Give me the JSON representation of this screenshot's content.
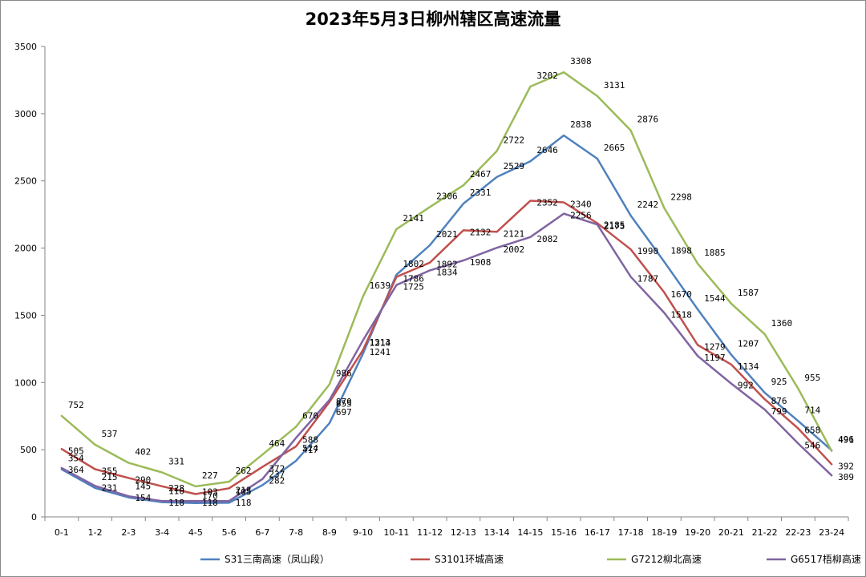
{
  "chart_data": {
    "type": "line",
    "title": "2023年5月3日柳州辖区高速流量",
    "xlabel": "",
    "ylabel": "",
    "ylim": [
      0,
      3500
    ],
    "yticks": [
      0,
      500,
      1000,
      1500,
      2000,
      2500,
      3000,
      3500
    ],
    "grid": false,
    "legend_position": "bottom",
    "categories": [
      "0-1",
      "1-2",
      "2-3",
      "3-4",
      "4-5",
      "5-6",
      "6-7",
      "7-8",
      "8-9",
      "9-10",
      "10-11",
      "11-12",
      "12-13",
      "13-14",
      "14-15",
      "15-16",
      "16-17",
      "17-18",
      "18-19",
      "19-20",
      "20-21",
      "21-22",
      "22-23",
      "23-24"
    ],
    "series": [
      {
        "name": "S31三南高速（凤山段）",
        "color": "#4f81bd",
        "values": [
          354,
          215,
          145,
          110,
          103,
          105,
          237,
          417,
          697,
          1214,
          1802,
          2021,
          2331,
          2529,
          2646,
          2838,
          2665,
          2242,
          1898,
          1544,
          1207,
          925,
          714,
          496
        ]
      },
      {
        "name": "S3101环城高速",
        "color": "#c0504d",
        "values": [
          505,
          355,
          290,
          228,
          170,
          213,
          372,
          524,
          855,
          1241,
          1786,
          1892,
          2132,
          2121,
          2352,
          2340,
          2185,
          1990,
          1670,
          1279,
          1134,
          876,
          658,
          392
        ]
      },
      {
        "name": "G7212柳北高速",
        "color": "#9bbb59",
        "values": [
          752,
          537,
          402,
          331,
          227,
          262,
          464,
          670,
          986,
          1639,
          2141,
          2306,
          2467,
          2722,
          3202,
          3308,
          3131,
          2876,
          2298,
          1885,
          1587,
          1360,
          955,
          491
        ]
      },
      {
        "name": "G6517梧柳高速",
        "color": "#8064a2",
        "values": [
          364,
          231,
          154,
          118,
          118,
          118,
          282,
          588,
          870,
          1313,
          1725,
          1834,
          1908,
          2002,
          2082,
          2256,
          2175,
          1787,
          1518,
          1197,
          992,
          799,
          546,
          309
        ]
      }
    ]
  }
}
